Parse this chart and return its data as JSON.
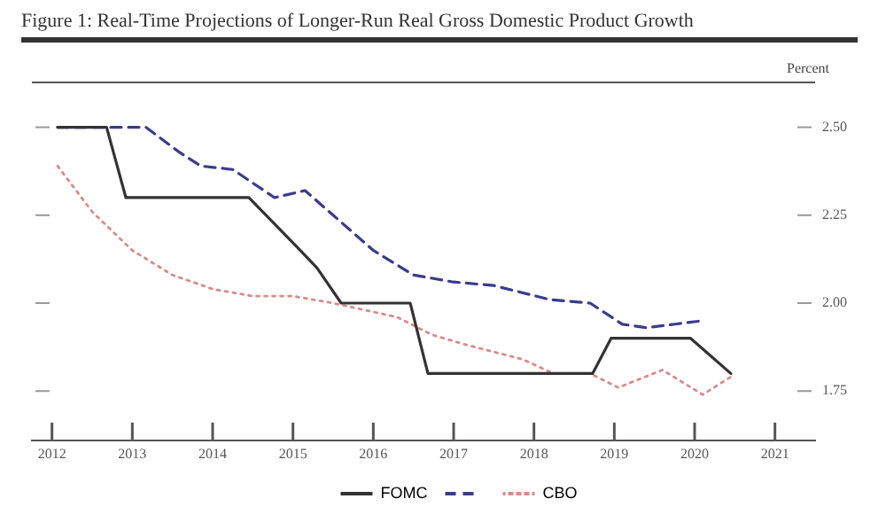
{
  "chart_data": {
    "type": "line",
    "title": "Figure 1: Real-Time Projections of Longer-Run Real Gross Domestic Product Growth",
    "ylabel": "Percent",
    "xlim": [
      2011.75,
      2021.5
    ],
    "xticks": [
      2012,
      2013,
      2014,
      2015,
      2016,
      2017,
      2018,
      2019,
      2020,
      2021
    ],
    "ylim": [
      1.61,
      2.63
    ],
    "yticks": [
      1.75,
      {
        "value": 2.0,
        "label": "2.00"
      },
      2.25,
      {
        "value": 2.5,
        "label": "2.50"
      }
    ],
    "grid": false,
    "legend": "bottom",
    "marker": "none",
    "series": [
      {
        "name": "FOMC",
        "color": "#333333",
        "line_style": "solid",
        "x": [
          2012.07,
          2012.68,
          2012.92,
          2014.45,
          2015.05,
          2015.3,
          2015.6,
          2016.46,
          2016.68,
          2018.73,
          2018.96,
          2019.95,
          2020.45
        ],
        "values": [
          2.5,
          2.5,
          2.3,
          2.3,
          2.16,
          2.1,
          2.0,
          2.0,
          1.8,
          1.8,
          1.9,
          1.9,
          1.8
        ]
      },
      {
        "color": "#3b3b8f",
        "line_style": "dashed",
        "x": [
          2012.07,
          2013.17,
          2013.58,
          2013.85,
          2014.25,
          2014.77,
          2015.15,
          2015.5,
          2016.0,
          2016.5,
          2017.0,
          2017.5,
          2018.2,
          2018.7,
          2019.1,
          2019.4,
          2020.1
        ],
        "values": [
          2.5,
          2.5,
          2.43,
          2.39,
          2.38,
          2.3,
          2.32,
          2.25,
          2.15,
          2.08,
          2.06,
          2.05,
          2.01,
          2.0,
          1.94,
          1.93,
          1.95
        ]
      },
      {
        "name": "CBO",
        "color": "#d98a8a",
        "line_style": "dotted",
        "x": [
          2012.07,
          2012.5,
          2013.0,
          2013.5,
          2014.0,
          2014.5,
          2015.0,
          2015.5,
          2016.3,
          2016.73,
          2017.18,
          2017.86,
          2018.24,
          2018.7,
          2019.05,
          2019.6,
          2020.1,
          2020.45
        ],
        "values": [
          2.39,
          2.26,
          2.15,
          2.08,
          2.04,
          2.02,
          2.02,
          2.0,
          1.96,
          1.91,
          1.88,
          1.84,
          1.8,
          1.8,
          1.76,
          1.81,
          1.74,
          1.79
        ]
      }
    ]
  }
}
